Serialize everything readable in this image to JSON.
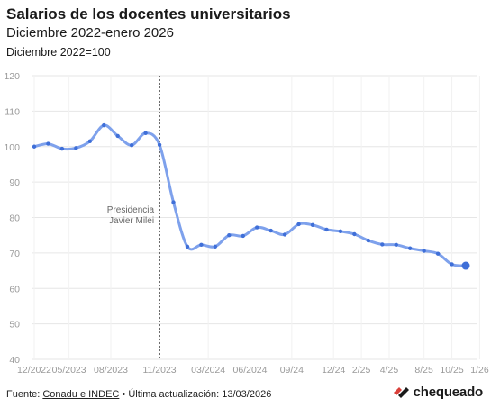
{
  "header": {
    "title": "Salarios de los docentes universitarios",
    "subtitle": "Diciembre 2022-enero 2026",
    "unit_note": "Diciembre 2022=100"
  },
  "footer": {
    "source_prefix": "Fuente: ",
    "source_link": "Conadu e INDEC",
    "updated": " • Última actualización: 13/03/2026",
    "brand": "chequeado"
  },
  "colors": {
    "line": "#7ea1ec",
    "point": "#3f6fd8",
    "grid": "#e6e6e6",
    "axis_text": "#9a9a9a",
    "brand_red": "#d9403a",
    "brand_dark": "#1a1a1a"
  },
  "chart_data": {
    "type": "line",
    "y_ticks": [
      40,
      50,
      60,
      70,
      80,
      90,
      100,
      110,
      120
    ],
    "ylim": [
      40,
      120
    ],
    "x_tick_labels": [
      "12/2022",
      "05/2023",
      "08/2023",
      "11/2023",
      "03/2024",
      "06/2024",
      "09/24",
      "12/24",
      "2/25",
      "4/25",
      "8/25",
      "10/25",
      "1/26"
    ],
    "x_tick_index": [
      0,
      2.5,
      5.5,
      9,
      12.5,
      15.5,
      18.5,
      21.5,
      23.5,
      25.5,
      28,
      30,
      32
    ],
    "values": [
      100.0,
      100.8,
      99.4,
      99.6,
      101.5,
      106.0,
      103.0,
      100.4,
      103.8,
      100.5,
      84.3,
      71.8,
      72.3,
      71.8,
      75.0,
      74.8,
      77.2,
      76.3,
      75.2,
      78.1,
      77.9,
      76.6,
      76.1,
      75.3,
      73.5,
      72.4,
      72.3,
      71.3,
      70.6,
      69.8,
      66.8,
      66.4
    ],
    "series": [
      {
        "name": "",
        "values_ref": "values"
      }
    ],
    "annotation": {
      "text_line1": "Presidencia",
      "text_line2": "Javier Milei",
      "at_index": 9
    },
    "grid": true,
    "legend": "none"
  }
}
